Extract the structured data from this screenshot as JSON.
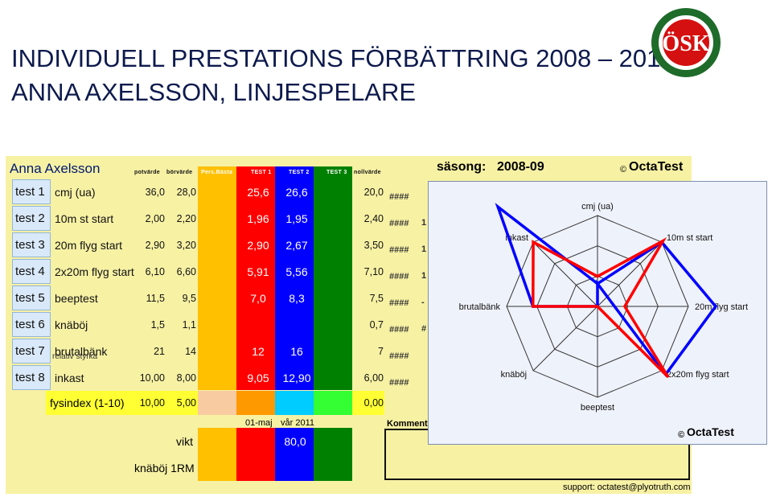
{
  "slide": {
    "title_line1": "INDIVIDUELL PRESTATIONS FÖRBÄTTRING 2008 – 2011",
    "title_line2": "ANNA AXELSSON, LINJESPELARE",
    "logo_text": "ÖSK"
  },
  "sheet": {
    "player_name": "Anna Axelsson",
    "season_label": "säsong:",
    "season_value": "2008-09",
    "brand": "OctaTest",
    "copyright": "©",
    "headers": [
      "potvärde",
      "börvärde",
      "Pers.Bästa",
      "TEST 1",
      "TEST 2",
      "TEST 3",
      "nollvärde"
    ],
    "rows": [
      {
        "test": "test 1",
        "name": "cmj (ua)",
        "pot": "36,0",
        "bor": "28,0",
        "t1": "25,6",
        "t2": "26,6",
        "noll": "20,0",
        "extra": ""
      },
      {
        "test": "test 2",
        "name": "10m st start",
        "pot": "2,00",
        "bor": "2,20",
        "t1": "1,96",
        "t2": "1,95",
        "noll": "2,40",
        "extra": "1"
      },
      {
        "test": "test 3",
        "name": "20m flyg start",
        "pot": "2,90",
        "bor": "3,20",
        "t1": "2,90",
        "t2": "2,67",
        "noll": "3,50",
        "extra": "1"
      },
      {
        "test": "test 4",
        "name": "2x20m flyg start",
        "pot": "6,10",
        "bor": "6,60",
        "t1": "5,91",
        "t2": "5,56",
        "noll": "7,10",
        "extra": "1"
      },
      {
        "test": "test 5",
        "name": "beeptest",
        "pot": "11,5",
        "bor": "9,5",
        "t1": "7,0",
        "t2": "8,3",
        "noll": "7,5",
        "extra": "-"
      },
      {
        "test": "test 6",
        "name": "knäböj",
        "pot": "1,5",
        "bor": "1,1",
        "t1": "",
        "t2": "",
        "noll": "0,7",
        "extra": "#"
      },
      {
        "test": "test 7",
        "name": "brutalbänk",
        "pot": "21",
        "bor": "14",
        "t1": "12",
        "t2": "16",
        "noll": "7",
        "extra": ""
      },
      {
        "test": "test 8",
        "name": "inkast",
        "pot": "10,00",
        "bor": "8,00",
        "t1": "9,05",
        "t2": "12,90",
        "noll": "6,00",
        "extra": ""
      }
    ],
    "relative_label": "relativ styrka",
    "hash_marks": "####",
    "fysindex": {
      "label": "fysindex (1-10)",
      "pot": "10,00",
      "bor": "5,00",
      "noll": "0,00"
    },
    "date_label": "01-maj",
    "date_period": "vår 2011",
    "vikt": {
      "label": "vikt",
      "value": "80,0"
    },
    "knaboj_rm": {
      "label": "knäböj 1RM"
    },
    "comment_label": "Komment",
    "support": "support: octatest@plyotruth.com"
  },
  "colors": {
    "pers_basta": "#ffc000",
    "test1": "#ff0000",
    "test2": "#0000ff",
    "test3": "#008000",
    "fys_pers": "#f8cba0",
    "fys_t1": "#ff9900",
    "fys_t2": "#00ccff",
    "fys_t3": "#33ff33",
    "title": "#0d1a4d"
  },
  "chart_data": {
    "type": "radar",
    "axes": [
      "cmj (ua)",
      "10m st start",
      "20m flyg start",
      "2x20m flyg start",
      "beeptest",
      "knäböj",
      "brutalbänk",
      "inkast"
    ],
    "rings": 3,
    "series": [
      {
        "color": "#0000ff",
        "values": [
          0.25,
          1.0,
          1.3,
          1.06,
          -0.25,
          0,
          0.71,
          1.55
        ]
      },
      {
        "color": "#ff0000",
        "values": [
          0.33,
          1.02,
          0.3,
          1.1,
          0,
          0,
          0.71,
          1.0
        ]
      }
    ],
    "watermark": "OctaTest",
    "copyright": "©"
  }
}
